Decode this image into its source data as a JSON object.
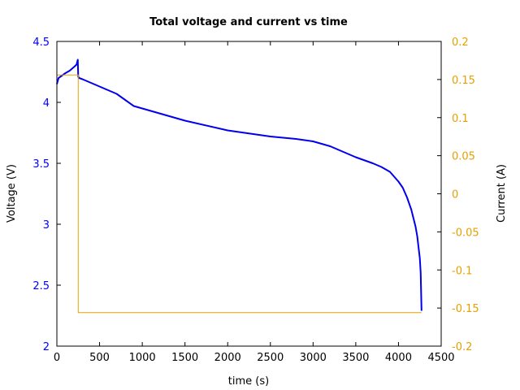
{
  "chart_data": {
    "type": "line",
    "title": "Total voltage and current vs time",
    "xlabel": "time (s)",
    "ylabel_left": "Voltage (V)",
    "ylabel_right": "Current (A)",
    "xlim": [
      0,
      4500
    ],
    "ylim_left": [
      2,
      4.5
    ],
    "ylim_right": [
      -0.2,
      0.2
    ],
    "x_ticks": [
      "0",
      "500",
      "1000",
      "1500",
      "2000",
      "2500",
      "3000",
      "3500",
      "4000",
      "4500"
    ],
    "y_left_ticks": [
      "2",
      "2.5",
      "3",
      "3.5",
      "4",
      "4.5"
    ],
    "y_right_ticks": [
      "0.2",
      "0.15",
      "0.1",
      "0.05",
      "0",
      "-0.05",
      "-0.1",
      "-0.15",
      "-0.2"
    ],
    "grid": false,
    "colors": {
      "voltage": "#0000ee",
      "current": "#e6a000",
      "left_axis": "#0000ff",
      "right_axis": "#e6a000"
    },
    "series": [
      {
        "axis": "left",
        "color": "#0000ee",
        "x": [
          0,
          20,
          60,
          100,
          150,
          200,
          230,
          245,
          250,
          260,
          300,
          400,
          500,
          600,
          700,
          800,
          900,
          1000,
          1200,
          1500,
          2000,
          2500,
          2800,
          3000,
          3200,
          3500,
          3700,
          3800,
          3900,
          4000,
          4050,
          4100,
          4150,
          4200,
          4220,
          4240,
          4250,
          4260,
          4270
        ],
        "values": [
          4.15,
          4.2,
          4.22,
          4.24,
          4.26,
          4.29,
          4.31,
          4.35,
          4.21,
          4.2,
          4.19,
          4.16,
          4.13,
          4.1,
          4.07,
          4.02,
          3.97,
          3.95,
          3.91,
          3.85,
          3.77,
          3.72,
          3.7,
          3.68,
          3.64,
          3.55,
          3.5,
          3.47,
          3.43,
          3.35,
          3.3,
          3.22,
          3.12,
          2.98,
          2.9,
          2.78,
          2.72,
          2.6,
          2.29
        ]
      },
      {
        "axis": "right",
        "color": "#e6a000",
        "x": [
          0,
          250,
          250,
          4270
        ],
        "values": [
          0.156,
          0.156,
          -0.156,
          -0.156
        ]
      }
    ]
  }
}
